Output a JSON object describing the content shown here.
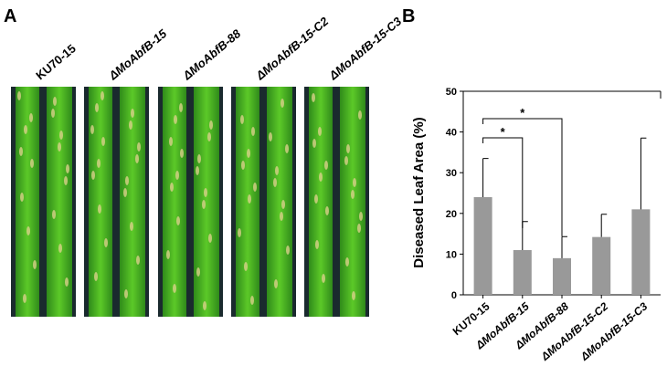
{
  "panel_labels": [
    "A",
    "B"
  ],
  "photo_labels": [
    "KU70-15",
    "ΔMoAbfB-15",
    "ΔMoAbfB-88",
    "ΔMoAbfB-15-C2",
    "ΔMoAbfB-15-C3"
  ],
  "chart_data": {
    "type": "bar",
    "y_label": "Diseased Leaf Area (%)",
    "categories": [
      "KU70-15",
      "ΔMoAbfB-15",
      "ΔMoAbfB-88",
      "ΔMoAbfB-15-C2",
      "ΔMoAbfB-15-C3"
    ],
    "values": [
      24,
      11,
      9,
      14.2,
      21
    ],
    "errors": [
      9.5,
      7,
      5.3,
      5.6,
      17.5
    ],
    "color": "#999999",
    "ylim": [
      0,
      50
    ],
    "yticks": [
      0,
      10,
      20,
      30,
      40,
      50
    ],
    "annotations": [
      "*",
      "*"
    ]
  }
}
